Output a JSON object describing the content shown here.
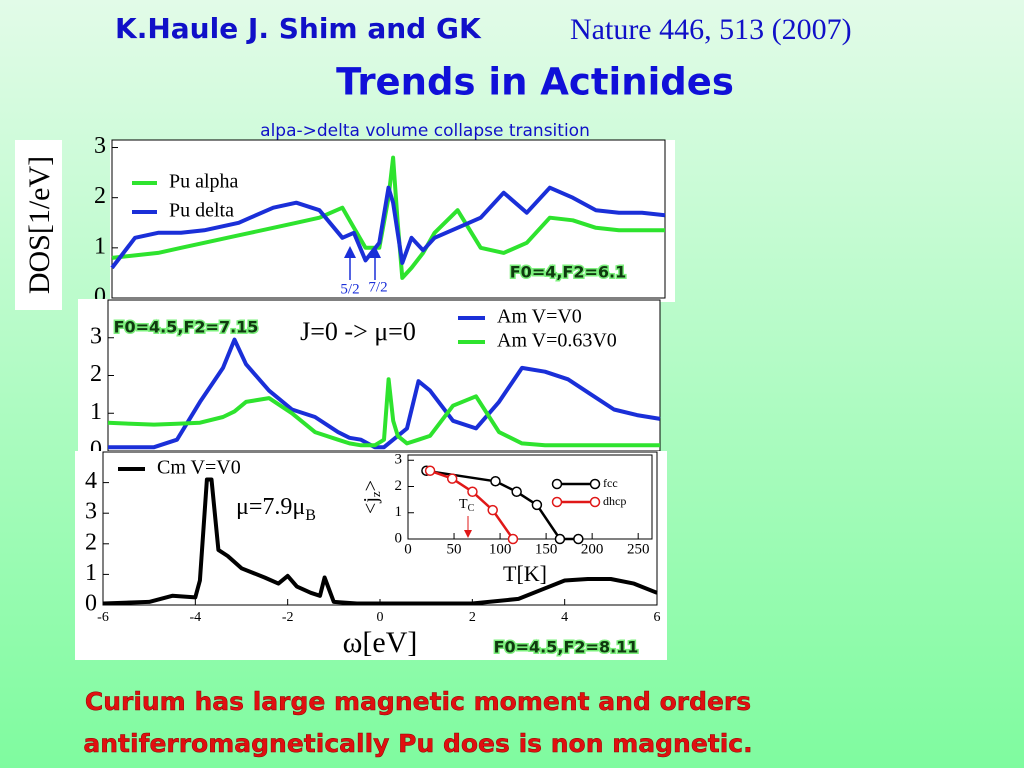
{
  "header": {
    "authors": "K.Haule  J. Shim and GK",
    "reference": "Nature 446, 513 (2007)",
    "title": "Trends in Actinides",
    "subtitle": "alpa->delta volume collapse transition"
  },
  "chart_data": [
    {
      "type": "line",
      "ylabel": "DOS[1/eV]",
      "x": [
        -6,
        -5.5,
        -5,
        -4.5,
        -4,
        -3.5,
        -3.25,
        -3,
        -2.5,
        -2,
        -1.5,
        -1,
        -0.75,
        -0.5,
        -0.2,
        0,
        0.1,
        0.2,
        0.3,
        0.5,
        0.75,
        1,
        1.5,
        2,
        2.5,
        3,
        3.5,
        4,
        4.5,
        5,
        5.5,
        6
      ],
      "series": [
        {
          "name": "Pu alpha",
          "color": "#2ee32e",
          "values": [
            0.8,
            0.85,
            0.9,
            1.0,
            1.1,
            1.2,
            1.25,
            1.3,
            1.4,
            1.5,
            1.6,
            1.8,
            1.4,
            1.0,
            1.0,
            2.0,
            2.8,
            1.5,
            0.4,
            0.6,
            0.9,
            1.3,
            1.75,
            1.0,
            0.9,
            1.1,
            1.6,
            1.55,
            1.4,
            1.35,
            1.35,
            1.35
          ]
        },
        {
          "name": "Pu delta",
          "color": "#1a2fd8",
          "values": [
            0.6,
            1.2,
            1.3,
            1.3,
            1.35,
            1.45,
            1.5,
            1.6,
            1.8,
            1.9,
            1.75,
            1.2,
            1.3,
            0.75,
            1.1,
            2.2,
            1.9,
            1.3,
            0.7,
            1.2,
            0.95,
            1.2,
            1.4,
            1.6,
            2.1,
            1.7,
            2.2,
            2.0,
            1.75,
            1.7,
            1.7,
            1.65
          ]
        }
      ],
      "xlim": [
        -6,
        6
      ],
      "ylim": [
        0,
        3.15
      ],
      "yticks": [
        0,
        1,
        2,
        3
      ],
      "legend": "upper left",
      "annotations": [
        "5/2",
        "7/2",
        "F0=4,F2=6.1"
      ]
    },
    {
      "type": "line",
      "x": [
        -6,
        -5.5,
        -5,
        -4.5,
        -4,
        -3.5,
        -3.25,
        -3,
        -2.5,
        -2,
        -1.5,
        -1,
        -0.75,
        -0.5,
        -0.2,
        0,
        0.1,
        0.2,
        0.3,
        0.5,
        0.75,
        1,
        1.5,
        2,
        2.5,
        3,
        3.5,
        4,
        4.5,
        5,
        5.5,
        6
      ],
      "series": [
        {
          "name": "Am V=V0",
          "color": "#1a2fd8",
          "values": [
            0.1,
            0.1,
            0.1,
            0.3,
            1.3,
            2.2,
            2.95,
            2.3,
            1.6,
            1.1,
            0.9,
            0.5,
            0.35,
            0.3,
            0.1,
            0.1,
            0.2,
            0.3,
            0.4,
            0.6,
            1.85,
            1.6,
            0.8,
            0.6,
            1.3,
            2.2,
            2.1,
            1.9,
            1.5,
            1.1,
            0.95,
            0.85
          ]
        },
        {
          "name": "Am V=0.63V0",
          "color": "#2ee32e",
          "values": [
            0.75,
            0.72,
            0.7,
            0.72,
            0.75,
            0.9,
            1.05,
            1.3,
            1.4,
            1.0,
            0.5,
            0.3,
            0.2,
            0.15,
            0.15,
            0.3,
            1.9,
            0.8,
            0.4,
            0.2,
            0.3,
            0.4,
            1.2,
            1.45,
            0.5,
            0.2,
            0.15,
            0.15,
            0.15,
            0.15,
            0.15,
            0.15
          ]
        }
      ],
      "xlim": [
        -6,
        6
      ],
      "ylim": [
        0,
        4
      ],
      "yticks": [
        0,
        1,
        2,
        3
      ],
      "legend": "upper right",
      "annotations": [
        "F0=4.5,F2=7.15",
        "J=0 -> μ=0"
      ]
    },
    {
      "type": "line",
      "xlabel": "ω[eV]",
      "x": [
        -6,
        -5,
        -4.5,
        -4,
        -3.9,
        -3.75,
        -3.65,
        -3.5,
        -3.3,
        -3,
        -2.5,
        -2.2,
        -2,
        -1.8,
        -1.5,
        -1.3,
        -1.2,
        -1,
        -0.5,
        0,
        0.5,
        1,
        2,
        3,
        3.5,
        4,
        4.5,
        5,
        5.5,
        6
      ],
      "series": [
        {
          "name": "Cm V=V0",
          "color": "#000000",
          "values": [
            0.05,
            0.1,
            0.3,
            0.25,
            0.8,
            4.1,
            4.1,
            1.8,
            1.6,
            1.2,
            0.9,
            0.7,
            0.95,
            0.6,
            0.4,
            0.3,
            0.9,
            0.1,
            0.05,
            0.05,
            0.05,
            0.05,
            0.05,
            0.2,
            0.5,
            0.8,
            0.85,
            0.85,
            0.7,
            0.4
          ]
        }
      ],
      "xlim": [
        -6,
        6
      ],
      "ylim": [
        0,
        5
      ],
      "xticks": [
        -6,
        -4,
        -2,
        0,
        2,
        4,
        6
      ],
      "yticks": [
        0,
        1,
        2,
        3,
        4
      ],
      "legend": "upper left",
      "annotations": [
        {
          "text": "μ=7.9μ",
          "sub": "B"
        },
        "F0=4.5,F2=8.11"
      ]
    },
    {
      "type": "line",
      "markers": true,
      "xlabel": "T[K]",
      "ylabel": {
        "text": "<j",
        "sub": "z",
        "tail": ">"
      },
      "series": [
        {
          "name": "fcc",
          "color": "#000000",
          "x": [
            20,
            95,
            118,
            140,
            165,
            185
          ],
          "values": [
            2.6,
            2.2,
            1.8,
            1.3,
            0,
            0
          ]
        },
        {
          "name": "dhcp",
          "color": "#e01818",
          "x": [
            24,
            48,
            70,
            92,
            114
          ],
          "values": [
            2.6,
            2.3,
            1.8,
            1.1,
            0
          ]
        }
      ],
      "xlim": [
        0,
        265
      ],
      "ylim": [
        0,
        3.2
      ],
      "xticks": [
        0,
        50,
        100,
        150,
        200,
        250
      ],
      "yticks": [
        0,
        1,
        2,
        3
      ],
      "legend": "upper right",
      "annotations": [
        {
          "text": "T",
          "sub": "C"
        }
      ]
    }
  ],
  "footer": {
    "lines": [
      "Curium has large magnetic moment and orders",
      "antiferromagnetically Pu does is non magnetic."
    ]
  }
}
